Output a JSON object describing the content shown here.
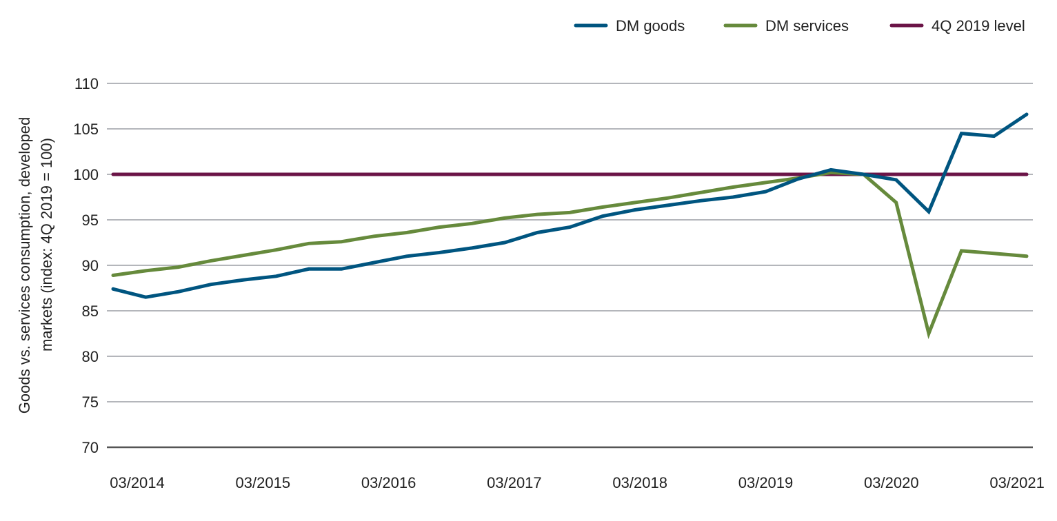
{
  "chart_data": {
    "type": "line",
    "title": "",
    "xlabel": "",
    "ylabel": "Goods vs. services consumption, developed markets (index: 4Q 2019 = 100)",
    "ylabel_lines": [
      "Goods vs. services consumption, developed",
      "markets (index: 4Q 2019 = 100)"
    ],
    "ylim": [
      70,
      110
    ],
    "yticks": [
      70,
      75,
      80,
      85,
      90,
      95,
      100,
      105,
      110
    ],
    "xtick_labels": [
      "03/2014",
      "03/2015",
      "03/2016",
      "03/2017",
      "03/2018",
      "03/2019",
      "03/2020",
      "03/2021"
    ],
    "x_frequency": "quarterly, 03/2014 to 03/2021",
    "grid": true,
    "legend_position": "top-right",
    "series": [
      {
        "name": "DM goods",
        "color": "#005580",
        "values": [
          87.4,
          86.5,
          87.1,
          87.9,
          88.4,
          88.8,
          89.6,
          89.6,
          90.3,
          91.0,
          91.4,
          91.9,
          92.5,
          93.6,
          94.2,
          95.4,
          96.1,
          96.6,
          97.1,
          97.5,
          98.1,
          99.5,
          100.5,
          100.0,
          99.4,
          95.9,
          104.5,
          104.2,
          106.6
        ]
      },
      {
        "name": "DM services",
        "color": "#668a3c",
        "values": [
          88.9,
          89.4,
          89.8,
          90.5,
          91.1,
          91.7,
          92.4,
          92.6,
          93.2,
          93.6,
          94.2,
          94.6,
          95.2,
          95.6,
          95.8,
          96.4,
          96.9,
          97.4,
          98.0,
          98.6,
          99.1,
          99.6,
          100.2,
          100.0,
          96.9,
          82.5,
          91.6,
          91.3,
          91.0
        ]
      },
      {
        "name": "4Q 2019 level",
        "color": "#6b1447",
        "values": [
          100,
          100,
          100,
          100,
          100,
          100,
          100,
          100,
          100,
          100,
          100,
          100,
          100,
          100,
          100,
          100,
          100,
          100,
          100,
          100,
          100,
          100,
          100,
          100,
          100,
          100,
          100,
          100,
          100
        ]
      }
    ]
  }
}
